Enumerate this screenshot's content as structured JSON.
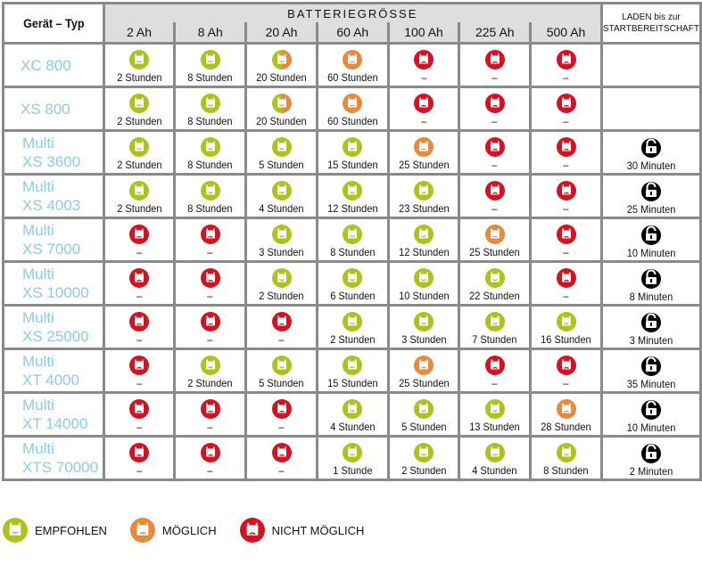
{
  "header": {
    "device_col": "Gerät – Typ",
    "group": "BATTERIEGRÖSSE",
    "sizes": [
      "2 Ah",
      "8 Ah",
      "20 Ah",
      "60 Ah",
      "100 Ah",
      "225 Ah",
      "500 Ah"
    ],
    "last_col": [
      "LADEN bis zur",
      "STARTBEREITSCHAFT"
    ]
  },
  "colors": {
    "green": "#a9c51b",
    "orange": "#e9893c",
    "red": "#d8101f",
    "device": "#8ccbe9",
    "border": "#8a8a8a",
    "lock": "#000000"
  },
  "rows": [
    {
      "device": [
        "XC 800"
      ],
      "status": [
        "g",
        "g",
        "h",
        "o",
        "r",
        "r",
        "r"
      ],
      "text": [
        "2 Stunden",
        "8 Stunden",
        "20 Stunden",
        "60 Stunden",
        "–",
        "–",
        "–"
      ],
      "ready": ""
    },
    {
      "device": [
        "XS 800"
      ],
      "status": [
        "g",
        "g",
        "h",
        "o",
        "r",
        "r",
        "r"
      ],
      "text": [
        "2 Stunden",
        "8 Stunden",
        "20 Stunden",
        "60 Stunden",
        "–",
        "–",
        "–"
      ],
      "ready": ""
    },
    {
      "device": [
        "Multi",
        "XS 3600"
      ],
      "status": [
        "g",
        "g",
        "g",
        "g",
        "o",
        "r",
        "r"
      ],
      "text": [
        "2 Stunden",
        "8 Stunden",
        "5 Stunden",
        "15 Stunden",
        "25 Stunden",
        "–",
        "–"
      ],
      "ready": "30 Minuten"
    },
    {
      "device": [
        "Multi",
        "XS 4003"
      ],
      "status": [
        "g",
        "g",
        "g",
        "g",
        "g",
        "r",
        "r"
      ],
      "text": [
        "2 Stunden",
        "8 Stunden",
        "4 Stunden",
        "12 Stunden",
        "23 Stunden",
        "–",
        "–"
      ],
      "ready": "25 Minuten"
    },
    {
      "device": [
        "Multi",
        "XS 7000"
      ],
      "status": [
        "r",
        "r",
        "g",
        "g",
        "g",
        "o",
        "r"
      ],
      "text": [
        "–",
        "–",
        "3 Stunden",
        "8 Stunden",
        "12 Stunden",
        "25 Stunden",
        "–"
      ],
      "ready": "10 Minuten"
    },
    {
      "device": [
        "Multi",
        "XS 10000"
      ],
      "status": [
        "r",
        "r",
        "g",
        "g",
        "g",
        "g",
        "r"
      ],
      "text": [
        "–",
        "–",
        "2 Stunden",
        "6 Stunden",
        "10 Stunden",
        "22 Stunden",
        "–"
      ],
      "ready": "8 Minuten"
    },
    {
      "device": [
        "Multi",
        "XS 25000"
      ],
      "status": [
        "r",
        "r",
        "r",
        "g",
        "g",
        "g",
        "g"
      ],
      "text": [
        "–",
        "–",
        "–",
        "2 Stunden",
        "3 Stunden",
        "7 Stunden",
        "16 Stunden"
      ],
      "ready": "3 Minuten"
    },
    {
      "device": [
        "Multi",
        "XT 4000"
      ],
      "status": [
        "r",
        "g",
        "g",
        "g",
        "o",
        "r",
        "r"
      ],
      "text": [
        "–",
        "2 Stunden",
        "5 Stunden",
        "15 Stunden",
        "25 Stunden",
        "–",
        "–"
      ],
      "ready": "35 Minuten"
    },
    {
      "device": [
        "Multi",
        "XT 14000"
      ],
      "status": [
        "r",
        "r",
        "r",
        "g",
        "g",
        "g",
        "o"
      ],
      "text": [
        "–",
        "–",
        "–",
        "4 Stunden",
        "5 Stunden",
        "13 Stunden",
        "28 Stunden"
      ],
      "ready": "10 Minuten"
    },
    {
      "device": [
        "Multi",
        "XTS 70000"
      ],
      "status": [
        "r",
        "r",
        "r",
        "g",
        "g",
        "g",
        "g"
      ],
      "text": [
        "–",
        "–",
        "–",
        "1 Stunde",
        "2 Stunden",
        "4 Stunden",
        "8 Stunden"
      ],
      "ready": "2 Minuten"
    }
  ],
  "legend": [
    {
      "status": "g",
      "label": "EMPFOHLEN"
    },
    {
      "status": "o",
      "label": "MÖGLICH"
    },
    {
      "status": "r",
      "label": "NICHT MÖGLICH"
    }
  ]
}
